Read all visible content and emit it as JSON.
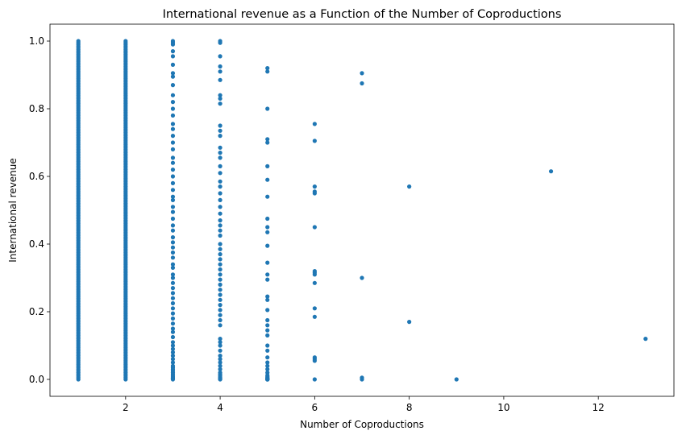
{
  "chart_data": {
    "type": "scatter",
    "title": "International revenue as a Function of the Number of Coproductions",
    "xlabel": "Number of Coproductions",
    "ylabel": "International revenue",
    "xlim": [
      0.4,
      13.6
    ],
    "ylim": [
      -0.05,
      1.05
    ],
    "xticks": [
      2,
      4,
      6,
      8,
      10,
      12
    ],
    "yticks": [
      0.0,
      0.2,
      0.4,
      0.6,
      0.8,
      1.0
    ],
    "point_color": "#1f77b4",
    "grid": false,
    "dense_columns": [
      {
        "x": 1,
        "min": 0.0,
        "max": 1.0
      },
      {
        "x": 2,
        "min": 0.0,
        "max": 1.0
      }
    ],
    "points": {
      "x": [
        3,
        3,
        3,
        3,
        3,
        3,
        3,
        3,
        3,
        3,
        3,
        3,
        3,
        3,
        3,
        3,
        3,
        3,
        3,
        3,
        3,
        3,
        3,
        3,
        3,
        3,
        3,
        3,
        3,
        3,
        3,
        3,
        3,
        3,
        3,
        3,
        3,
        3,
        3,
        3,
        3,
        3,
        3,
        3,
        3,
        3,
        3,
        3,
        3,
        3,
        3,
        3,
        3,
        3,
        3,
        3,
        3,
        3,
        3,
        3,
        3,
        3,
        3,
        3,
        3,
        3,
        3,
        3,
        3,
        3,
        4,
        4,
        4,
        4,
        4,
        4,
        4,
        4,
        4,
        4,
        4,
        4,
        4,
        4,
        4,
        4,
        4,
        4,
        4,
        4,
        4,
        4,
        4,
        4,
        4,
        4,
        4,
        4,
        4,
        4,
        4,
        4,
        4,
        4,
        4,
        4,
        4,
        4,
        4,
        4,
        4,
        4,
        4,
        4,
        4,
        4,
        4,
        4,
        4,
        4,
        4,
        4,
        4,
        4,
        4,
        4,
        4,
        4,
        4,
        4,
        5,
        5,
        5,
        5,
        5,
        5,
        5,
        5,
        5,
        5,
        5,
        5,
        5,
        5,
        5,
        5,
        5,
        5,
        5,
        5,
        5,
        5,
        5,
        5,
        5,
        5,
        5,
        5,
        5,
        5,
        5,
        5,
        5,
        5,
        5,
        5,
        5,
        5,
        5,
        5,
        6,
        6,
        6,
        6,
        6,
        6,
        6,
        6,
        6,
        6,
        6,
        6,
        6,
        6,
        6,
        6,
        7,
        7,
        7,
        7,
        7,
        8,
        8,
        9,
        11,
        13
      ],
      "y": [
        1.0,
        0.995,
        0.99,
        0.97,
        0.955,
        0.93,
        0.905,
        0.895,
        0.87,
        0.84,
        0.82,
        0.8,
        0.78,
        0.755,
        0.74,
        0.72,
        0.7,
        0.68,
        0.655,
        0.64,
        0.62,
        0.6,
        0.58,
        0.56,
        0.54,
        0.53,
        0.51,
        0.495,
        0.475,
        0.455,
        0.44,
        0.42,
        0.405,
        0.39,
        0.375,
        0.36,
        0.34,
        0.33,
        0.31,
        0.3,
        0.285,
        0.27,
        0.255,
        0.24,
        0.225,
        0.21,
        0.195,
        0.18,
        0.165,
        0.15,
        0.14,
        0.125,
        0.11,
        0.1,
        0.09,
        0.08,
        0.07,
        0.06,
        0.05,
        0.04,
        0.035,
        0.03,
        0.025,
        0.02,
        0.015,
        0.01,
        0.007,
        0.004,
        0.002,
        0.0,
        1.0,
        0.995,
        0.955,
        0.925,
        0.91,
        0.885,
        0.84,
        0.83,
        0.815,
        0.75,
        0.735,
        0.72,
        0.685,
        0.67,
        0.655,
        0.63,
        0.61,
        0.585,
        0.57,
        0.55,
        0.53,
        0.51,
        0.49,
        0.47,
        0.455,
        0.44,
        0.425,
        0.4,
        0.385,
        0.37,
        0.355,
        0.34,
        0.325,
        0.31,
        0.295,
        0.28,
        0.265,
        0.25,
        0.235,
        0.22,
        0.205,
        0.19,
        0.175,
        0.16,
        0.12,
        0.11,
        0.1,
        0.085,
        0.07,
        0.06,
        0.05,
        0.04,
        0.03,
        0.02,
        0.015,
        0.01,
        0.006,
        0.003,
        0.001,
        0.0,
        0.92,
        0.91,
        0.8,
        0.71,
        0.7,
        0.63,
        0.59,
        0.54,
        0.475,
        0.45,
        0.435,
        0.395,
        0.345,
        0.31,
        0.295,
        0.245,
        0.235,
        0.205,
        0.175,
        0.16,
        0.145,
        0.13,
        0.1,
        0.085,
        0.065,
        0.05,
        0.04,
        0.03,
        0.02,
        0.012,
        0.008,
        0.005,
        0.003,
        0.002,
        0.001,
        0.0,
        0.0,
        0.0,
        0.0,
        0.0,
        0.755,
        0.705,
        0.57,
        0.555,
        0.55,
        0.45,
        0.32,
        0.315,
        0.31,
        0.285,
        0.21,
        0.185,
        0.065,
        0.06,
        0.055,
        0.0,
        0.905,
        0.875,
        0.3,
        0.005,
        0.0,
        0.57,
        0.17,
        0.0,
        0.615,
        0.12
      ]
    }
  }
}
